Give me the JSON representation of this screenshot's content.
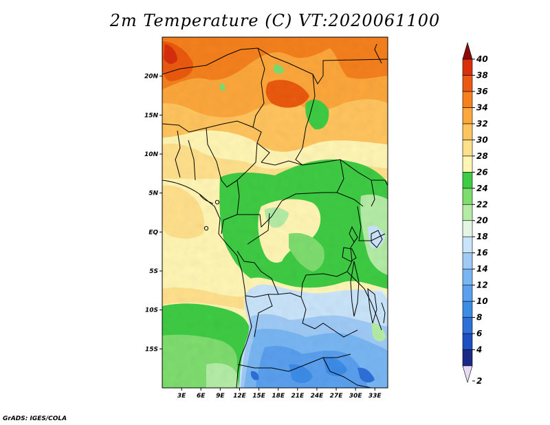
{
  "title": "2m Temperature (C) VT:2020061100",
  "footer": "GrADS: IGES/COLA",
  "map": {
    "lon_range": [
      0,
      35
    ],
    "lat_range": [
      -20,
      25
    ],
    "lat_ticks": [
      {
        "value": 20,
        "label": "20N"
      },
      {
        "value": 15,
        "label": "15N"
      },
      {
        "value": 10,
        "label": "10N"
      },
      {
        "value": 5,
        "label": "5N"
      },
      {
        "value": 0,
        "label": "EQ"
      },
      {
        "value": -5,
        "label": "5S"
      },
      {
        "value": -10,
        "label": "10S"
      },
      {
        "value": -15,
        "label": "15S"
      }
    ],
    "lon_ticks": [
      {
        "value": 3,
        "label": "3E"
      },
      {
        "value": 6,
        "label": "6E"
      },
      {
        "value": 9,
        "label": "9E"
      },
      {
        "value": 12,
        "label": "12E"
      },
      {
        "value": 15,
        "label": "15E"
      },
      {
        "value": 18,
        "label": "18E"
      },
      {
        "value": 21,
        "label": "21E"
      },
      {
        "value": 24,
        "label": "24E"
      },
      {
        "value": 27,
        "label": "27E"
      },
      {
        "value": 30,
        "label": "30E"
      },
      {
        "value": 33,
        "label": "33E"
      }
    ]
  },
  "colorbar": {
    "levels": [
      2,
      4,
      6,
      8,
      10,
      12,
      14,
      16,
      18,
      20,
      22,
      24,
      26,
      28,
      30,
      32,
      34,
      36,
      38,
      40
    ],
    "colors": [
      "#1a2a86",
      "#1d4fc2",
      "#2e6fd8",
      "#3c8ce6",
      "#5aa0ee",
      "#78b6f2",
      "#9fcaf6",
      "#c9e4fa",
      "#e4f5e6",
      "#b4eca6",
      "#7edd6e",
      "#3fcb44",
      "#fff5b4",
      "#ffe08c",
      "#ffc45e",
      "#fca73c",
      "#f5801c",
      "#ea5a12",
      "#d8300c",
      "#b8180a",
      "#8c0a0a"
    ],
    "under_color": "#e6dcf5",
    "over_color": "#8c0a0a"
  }
}
